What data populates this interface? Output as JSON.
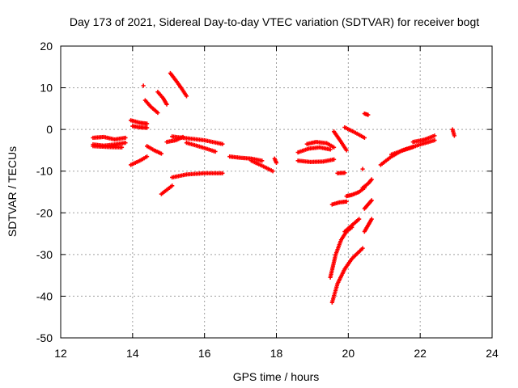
{
  "chart_data": {
    "type": "scatter",
    "title": "Day 173 of 2021, Sidereal Day-to-day VTEC variation (SDTVAR) for receiver bogt",
    "xlabel": "GPS time / hours",
    "ylabel": "SDTVAR / TECUs",
    "xlim": [
      12,
      24
    ],
    "ylim": [
      -50,
      20
    ],
    "xticks": [
      12,
      14,
      16,
      18,
      20,
      22,
      24
    ],
    "yticks": [
      -50,
      -40,
      -30,
      -20,
      -10,
      0,
      10,
      20
    ],
    "grid": true,
    "marker": "plus",
    "color": "#ff0000",
    "series": [
      {
        "tracks": [
          [
            [
              12.9,
              -2.0
            ],
            [
              13.2,
              -1.8
            ],
            [
              13.5,
              -2.4
            ],
            [
              13.8,
              -2.0
            ]
          ],
          [
            [
              12.9,
              -3.6
            ],
            [
              13.2,
              -3.9
            ],
            [
              13.5,
              -3.6
            ],
            [
              13.8,
              -3.2
            ]
          ],
          [
            [
              12.9,
              -4.0
            ],
            [
              13.3,
              -4.2
            ],
            [
              13.7,
              -4.3
            ]
          ],
          [
            [
              13.95,
              2.2
            ],
            [
              14.2,
              1.6
            ],
            [
              14.4,
              1.4
            ]
          ],
          [
            [
              14.0,
              0.8
            ],
            [
              14.2,
              0.5
            ],
            [
              14.4,
              0.4
            ]
          ],
          [
            [
              13.95,
              -8.5
            ],
            [
              14.2,
              -7.5
            ],
            [
              14.4,
              -6.5
            ]
          ],
          [
            [
              14.4,
              -4.0
            ],
            [
              14.6,
              -5.0
            ],
            [
              14.8,
              -5.8
            ]
          ],
          [
            [
              14.95,
              -3.0
            ],
            [
              15.2,
              -2.6
            ],
            [
              15.4,
              -1.8
            ]
          ],
          [
            [
              14.35,
              7.0
            ],
            [
              14.5,
              5.5
            ],
            [
              14.7,
              4.0
            ]
          ],
          [
            [
              14.7,
              9.0
            ],
            [
              14.85,
              7.5
            ],
            [
              14.95,
              6.0
            ]
          ],
          [
            [
              15.05,
              13.5
            ],
            [
              15.2,
              11.8
            ],
            [
              15.35,
              10.0
            ],
            [
              15.5,
              8.0
            ]
          ],
          [
            [
              14.8,
              -15.5
            ],
            [
              14.95,
              -14.5
            ],
            [
              15.1,
              -13.5
            ]
          ],
          [
            [
              15.1,
              -11.5
            ],
            [
              15.5,
              -10.8
            ],
            [
              16.0,
              -10.5
            ],
            [
              16.5,
              -10.5
            ]
          ],
          [
            [
              15.1,
              -1.7
            ],
            [
              15.5,
              -2.1
            ],
            [
              16.0,
              -2.6
            ],
            [
              16.5,
              -3.5
            ]
          ],
          [
            [
              15.5,
              -3.2
            ],
            [
              15.9,
              -4.2
            ],
            [
              16.3,
              -5.3
            ]
          ],
          [
            [
              16.7,
              -6.5
            ],
            [
              17.0,
              -6.8
            ],
            [
              17.3,
              -7.0
            ],
            [
              17.6,
              -7.5
            ]
          ],
          [
            [
              17.3,
              -7.5
            ],
            [
              17.6,
              -8.7
            ],
            [
              17.9,
              -10.0
            ]
          ],
          [
            [
              17.95,
              -7.0
            ],
            [
              18.0,
              -8.0
            ]
          ],
          [
            [
              18.6,
              -5.5
            ],
            [
              18.9,
              -4.6
            ],
            [
              19.2,
              -4.3
            ],
            [
              19.5,
              -4.8
            ]
          ],
          [
            [
              18.6,
              -7.5
            ],
            [
              18.95,
              -7.8
            ],
            [
              19.3,
              -7.7
            ],
            [
              19.6,
              -7.2
            ]
          ],
          [
            [
              18.85,
              -3.5
            ],
            [
              19.1,
              -3.0
            ],
            [
              19.4,
              -3.3
            ],
            [
              19.6,
              -4.3
            ]
          ],
          [
            [
              19.7,
              -10.5
            ],
            [
              19.9,
              -10.4
            ]
          ],
          [
            [
              19.55,
              -18.0
            ],
            [
              19.75,
              -17.5
            ],
            [
              19.95,
              -17.3
            ]
          ],
          [
            [
              19.5,
              -35.5
            ],
            [
              19.65,
              -30.0
            ],
            [
              19.8,
              -26.5
            ],
            [
              19.95,
              -24.5
            ],
            [
              20.1,
              -23.5
            ]
          ],
          [
            [
              19.55,
              -41.5
            ],
            [
              19.7,
              -37.0
            ],
            [
              19.9,
              -33.5
            ],
            [
              20.1,
              -31.0
            ],
            [
              20.4,
              -28.5
            ]
          ],
          [
            [
              19.9,
              -24.5
            ],
            [
              20.1,
              -23.0
            ],
            [
              20.3,
              -21.5
            ]
          ],
          [
            [
              19.95,
              -16.0
            ],
            [
              20.1,
              -15.7
            ],
            [
              20.3,
              -15.0
            ],
            [
              20.45,
              -14.0
            ]
          ],
          [
            [
              20.4,
              -14.0
            ],
            [
              20.55,
              -13.0
            ],
            [
              20.65,
              -12.0
            ]
          ],
          [
            [
              20.45,
              -19.0
            ],
            [
              20.55,
              -18.0
            ],
            [
              20.65,
              -17.0
            ]
          ],
          [
            [
              20.45,
              -24.5
            ],
            [
              20.55,
              -23.0
            ],
            [
              20.65,
              -21.5
            ]
          ],
          [
            [
              19.6,
              -0.5
            ],
            [
              19.8,
              -3.0
            ],
            [
              19.95,
              -5.0
            ]
          ],
          [
            [
              19.9,
              0.5
            ],
            [
              20.2,
              -0.8
            ],
            [
              20.45,
              -2.0
            ]
          ],
          [
            [
              20.45,
              3.8
            ],
            [
              20.55,
              3.5
            ]
          ],
          [
            [
              20.4,
              -9.5
            ]
          ],
          [
            [
              20.9,
              -8.5
            ],
            [
              21.2,
              -6.5
            ],
            [
              21.5,
              -5.0
            ],
            [
              21.8,
              -4.2
            ]
          ],
          [
            [
              21.2,
              -6.0
            ],
            [
              21.6,
              -4.8
            ],
            [
              22.0,
              -3.6
            ],
            [
              22.4,
              -2.6
            ]
          ],
          [
            [
              21.8,
              -3.0
            ],
            [
              22.1,
              -2.5
            ],
            [
              22.4,
              -1.5
            ]
          ],
          [
            [
              22.9,
              0.0
            ],
            [
              22.95,
              -1.5
            ]
          ],
          [
            [
              14.3,
              10.5
            ]
          ]
        ]
      }
    ]
  }
}
